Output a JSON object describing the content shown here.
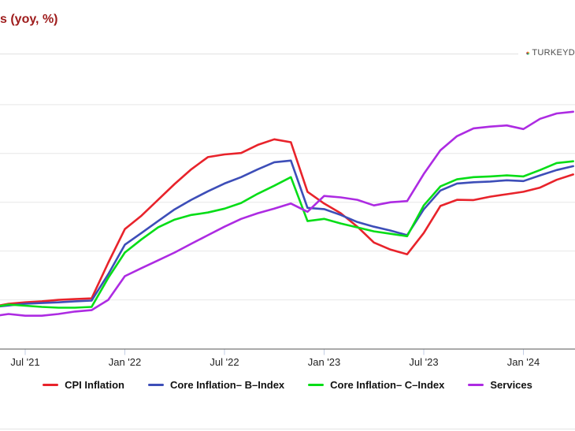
{
  "title": "s (yoy, %)",
  "brand": {
    "name": "TURKEYD",
    "icon": "pie-chart-icon"
  },
  "colors": {
    "title": "#9e1b1b",
    "grid": "#e7e7e7",
    "axis_line": "#545454",
    "tick": "#c2cde4",
    "axis_label": "#222222",
    "cpi": "#e8232b",
    "b_index": "#3d4eb8",
    "c_index": "#06dd17",
    "services": "#ad2be2"
  },
  "chart_data": {
    "type": "line",
    "title": "s (yoy, %)",
    "xlabel": "",
    "ylabel": "",
    "ylim": [
      0,
      118
    ],
    "grid": "horizontal",
    "gridline_values": [
      20,
      40,
      60,
      80,
      100
    ],
    "legend_position": "bottom",
    "x": [
      "May '21",
      "Jun '21",
      "Jul '21",
      "Aug '21",
      "Sep '21",
      "Oct '21",
      "Nov '21",
      "Dec '21",
      "Jan '22",
      "Feb '22",
      "Mar '22",
      "Apr '22",
      "May '22",
      "Jun '22",
      "Jul '22",
      "Aug '22",
      "Sep '22",
      "Oct '22",
      "Nov '22",
      "Dec '22",
      "Jan '23",
      "Feb '23",
      "Mar '23",
      "Apr '23",
      "May '23",
      "Jun '23",
      "Jul '23",
      "Aug '23",
      "Sep '23",
      "Oct '23",
      "Nov '23",
      "Dec '23",
      "Jan '24",
      "Feb '24",
      "Mar '24",
      "Apr '24"
    ],
    "x_tick_labels": [
      "Jul '21",
      "Jan '22",
      "Jul '22",
      "Jan '23",
      "Jul '23",
      "Jan '24"
    ],
    "x_tick_indices": [
      2,
      8,
      14,
      20,
      26,
      32
    ],
    "series": [
      {
        "name": "CPI Inflation",
        "color": "#e8232b",
        "values": [
          17.1,
          18.4,
          19.0,
          19.4,
          20.0,
          20.3,
          20.6,
          35.2,
          49.0,
          54.5,
          61.0,
          67.5,
          73.5,
          78.5,
          79.6,
          80.2,
          83.5,
          85.8,
          84.6,
          64.3,
          59.5,
          55.5,
          50.0,
          43.5,
          40.6,
          38.7,
          47.4,
          58.5,
          61.0,
          60.9,
          62.3,
          63.3,
          64.3,
          66.0,
          69.2,
          71.4
        ]
      },
      {
        "name": "Core Inflation– B–Index",
        "color": "#3d4eb8",
        "values": [
          17.0,
          17.7,
          18.4,
          18.7,
          19.0,
          19.4,
          19.7,
          30.5,
          42.6,
          47.4,
          52.3,
          57.1,
          61.0,
          64.5,
          67.7,
          70.3,
          73.5,
          76.4,
          77.1,
          57.7,
          57.2,
          54.8,
          51.9,
          50.0,
          48.4,
          46.5,
          57.1,
          64.8,
          67.7,
          68.2,
          68.5,
          69.0,
          68.7,
          71.0,
          73.2,
          74.8
        ]
      },
      {
        "name": "Core Inflation– C–Index",
        "color": "#06dd17",
        "values": [
          17.0,
          18.1,
          17.6,
          17.1,
          16.8,
          16.8,
          17.1,
          29.0,
          39.4,
          44.8,
          49.7,
          52.9,
          54.8,
          55.8,
          57.4,
          59.7,
          63.5,
          66.8,
          70.3,
          52.3,
          53.2,
          51.3,
          49.7,
          48.1,
          47.1,
          46.1,
          58.7,
          66.5,
          69.4,
          70.3,
          70.6,
          71.0,
          70.6,
          73.2,
          76.1,
          76.8
        ]
      },
      {
        "name": "Services",
        "color": "#ad2be2",
        "values": [
          13.2,
          14.2,
          13.5,
          13.5,
          14.2,
          15.2,
          15.8,
          20.0,
          29.7,
          33.0,
          36.2,
          39.4,
          43.0,
          46.5,
          50.0,
          53.2,
          55.5,
          57.4,
          59.5,
          56.1,
          62.6,
          62.0,
          61.0,
          58.7,
          60.0,
          60.5,
          71.6,
          81.3,
          87.1,
          90.3,
          91.0,
          91.5,
          90.0,
          94.2,
          96.4,
          97.1
        ]
      }
    ]
  }
}
